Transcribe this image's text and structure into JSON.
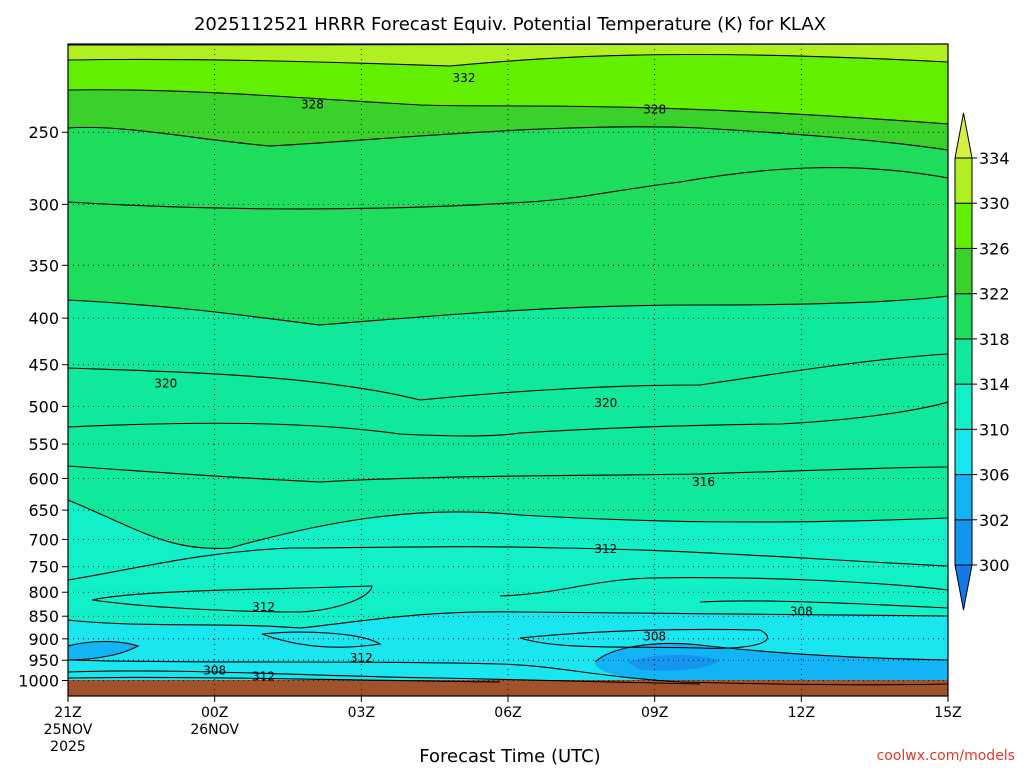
{
  "chart_data": {
    "type": "contour",
    "title": "2025112521 HRRR Forecast Equiv. Potential Temperature (K) for KLAX",
    "xlabel": "Forecast Time (UTC)",
    "ylabel": "",
    "credit": "coolwx.com/models",
    "y_scale": "log",
    "y_inverted": true,
    "y_range": [
      200,
      1040
    ],
    "x_range": [
      0,
      18
    ],
    "grid": "dotted",
    "x_ticks": [
      {
        "x": 0,
        "lines": [
          "21Z",
          "25NOV",
          "2025"
        ]
      },
      {
        "x": 3,
        "lines": [
          "00Z",
          "26NOV"
        ]
      },
      {
        "x": 6,
        "lines": [
          "03Z"
        ]
      },
      {
        "x": 9,
        "lines": [
          "06Z"
        ]
      },
      {
        "x": 12,
        "lines": [
          "09Z"
        ]
      },
      {
        "x": 15,
        "lines": [
          "12Z"
        ]
      },
      {
        "x": 18,
        "lines": [
          "15Z"
        ]
      }
    ],
    "y_ticks": [
      250,
      300,
      350,
      400,
      450,
      500,
      550,
      600,
      650,
      700,
      750,
      800,
      850,
      900,
      950,
      1000
    ],
    "colorbar": {
      "levels": [
        300,
        302,
        306,
        310,
        314,
        318,
        322,
        326,
        330,
        334
      ],
      "colors": [
        "#1478e6",
        "#1496f0",
        "#12b4f5",
        "#1ae6f0",
        "#12f0c8",
        "#10e89a",
        "#1edc5c",
        "#3ad22a",
        "#62f000",
        "#b0f020",
        "#d4f040"
      ],
      "extend": "both"
    },
    "contour_labels": [
      {
        "value": "332",
        "x": 8.1,
        "p": 218
      },
      {
        "value": "328",
        "x": 5.0,
        "p": 233
      },
      {
        "value": "328",
        "x": 12.0,
        "p": 236
      },
      {
        "value": "320",
        "x": 2.0,
        "p": 472
      },
      {
        "value": "320",
        "x": 11.0,
        "p": 496
      },
      {
        "value": "316",
        "x": 13.0,
        "p": 605
      },
      {
        "value": "312",
        "x": 11.0,
        "p": 717
      },
      {
        "value": "312",
        "x": 4.0,
        "p": 830
      },
      {
        "value": "308",
        "x": 15.0,
        "p": 840
      },
      {
        "value": "308",
        "x": 12.0,
        "p": 895
      },
      {
        "value": "312",
        "x": 6.0,
        "p": 945
      },
      {
        "value": "308",
        "x": 3.0,
        "p": 975
      },
      {
        "value": "312",
        "x": 4.0,
        "p": 990
      }
    ]
  }
}
